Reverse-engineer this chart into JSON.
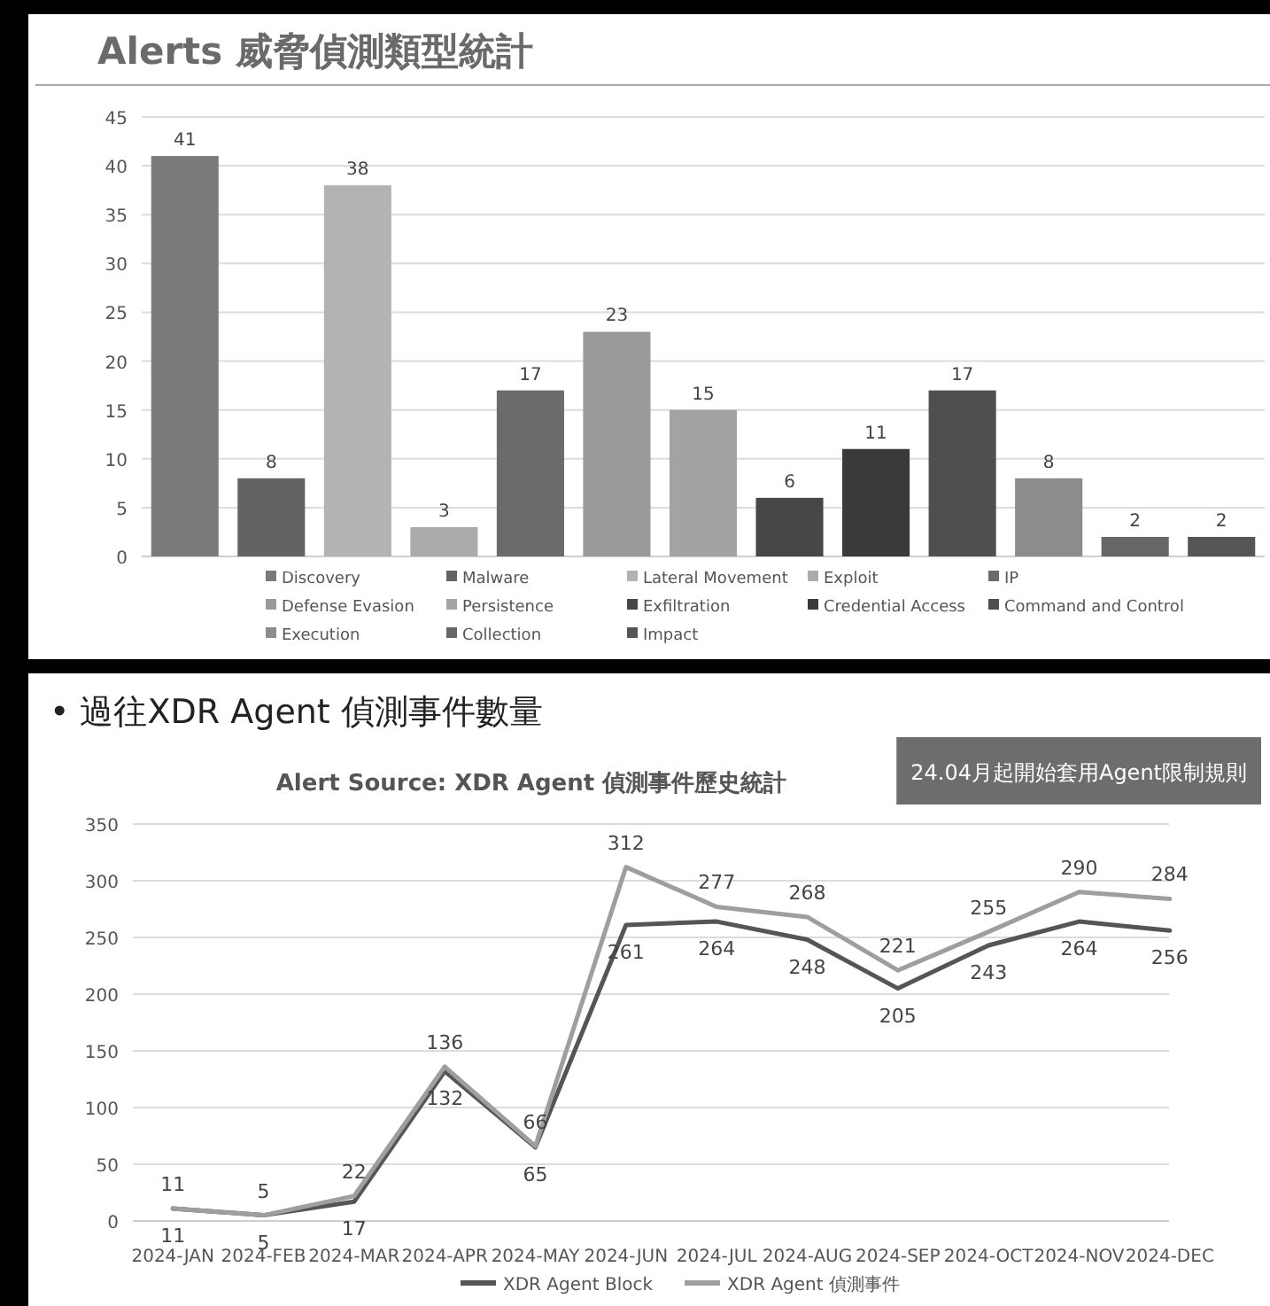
{
  "chart_data": [
    {
      "type": "bar",
      "title": "Alerts 威脅偵測類型統計",
      "categories": [
        null,
        null,
        null,
        null,
        null,
        null,
        null,
        null,
        null,
        null,
        null,
        null,
        null
      ],
      "ylim": [
        0,
        45
      ],
      "yticks": [
        0,
        5,
        10,
        15,
        20,
        25,
        30,
        35,
        40,
        45
      ],
      "grid": "y",
      "data_labels": true,
      "legend": "bottom",
      "series": [
        {
          "name": "Discovery",
          "color": "#7a7a7a",
          "values": [
            41,
            null,
            null,
            null,
            null,
            null,
            null,
            null,
            null,
            null,
            null,
            null,
            null
          ]
        },
        {
          "name": "Malware",
          "color": "#636363",
          "values": [
            null,
            8,
            null,
            null,
            null,
            null,
            null,
            null,
            null,
            null,
            null,
            null,
            null
          ]
        },
        {
          "name": "Lateral Movement",
          "color": "#b3b3b3",
          "values": [
            null,
            null,
            38,
            null,
            null,
            null,
            null,
            null,
            null,
            null,
            null,
            null,
            null
          ]
        },
        {
          "name": "Exploit",
          "color": "#ababab",
          "values": [
            null,
            null,
            null,
            3,
            null,
            null,
            null,
            null,
            null,
            null,
            null,
            null,
            null
          ]
        },
        {
          "name": "IP",
          "color": "#6b6b6b",
          "values": [
            null,
            null,
            null,
            null,
            17,
            null,
            null,
            null,
            null,
            null,
            null,
            null,
            null
          ]
        },
        {
          "name": "Defense Evasion",
          "color": "#9a9a9a",
          "values": [
            null,
            null,
            null,
            null,
            null,
            23,
            null,
            null,
            null,
            null,
            null,
            null,
            null
          ]
        },
        {
          "name": "Persistence",
          "color": "#a3a3a3",
          "values": [
            null,
            null,
            null,
            null,
            null,
            null,
            15,
            null,
            null,
            null,
            null,
            null,
            null
          ]
        },
        {
          "name": "Exfiltration",
          "color": "#474747",
          "values": [
            null,
            null,
            null,
            null,
            null,
            null,
            null,
            6,
            null,
            null,
            null,
            null,
            null
          ]
        },
        {
          "name": "Credential Access",
          "color": "#3a3a3a",
          "values": [
            null,
            null,
            null,
            null,
            null,
            null,
            null,
            null,
            11,
            null,
            null,
            null,
            null
          ]
        },
        {
          "name": "Command and Control",
          "color": "#4f4f4f",
          "values": [
            null,
            null,
            null,
            null,
            null,
            null,
            null,
            null,
            null,
            17,
            null,
            null,
            null
          ]
        },
        {
          "name": "Execution",
          "color": "#8c8c8c",
          "values": [
            null,
            null,
            null,
            null,
            null,
            null,
            null,
            null,
            null,
            null,
            8,
            null,
            null
          ]
        },
        {
          "name": "Collection",
          "color": "#666666",
          "values": [
            null,
            null,
            null,
            null,
            null,
            null,
            null,
            null,
            null,
            null,
            null,
            2,
            null
          ]
        },
        {
          "name": "Impact",
          "color": "#555555",
          "values": [
            null,
            null,
            null,
            null,
            null,
            null,
            null,
            null,
            null,
            null,
            null,
            null,
            2
          ]
        }
      ]
    },
    {
      "type": "line",
      "title": "Alert Source: XDR Agent 偵測事件歷史統計",
      "categories": [
        "2024-JAN",
        "2024-FEB",
        "2024-MAR",
        "2024-APR",
        "2024-MAY",
        "2024-JUN",
        "2024-JUL",
        "2024-AUG",
        "2024-SEP",
        "2024-OCT",
        "2024-NOV",
        "2024-DEC"
      ],
      "ylim": [
        0,
        350
      ],
      "yticks": [
        0,
        50,
        100,
        150,
        200,
        250,
        300,
        350
      ],
      "grid": "y",
      "data_labels": true,
      "legend": "bottom",
      "marker": "none",
      "annotations": [
        "• 過往XDR Agent 偵測事件數量",
        "24.04月起開始套用Agent限制規則"
      ],
      "series": [
        {
          "name": "XDR Agent Block",
          "color": "#555555",
          "values": [
            11,
            5,
            17,
            132,
            65,
            261,
            264,
            248,
            205,
            243,
            264,
            256
          ]
        },
        {
          "name": "XDR Agent 偵測事件",
          "color": "#9e9e9e",
          "values": [
            11,
            5,
            22,
            136,
            66,
            312,
            277,
            268,
            221,
            255,
            290,
            284
          ]
        }
      ]
    }
  ]
}
